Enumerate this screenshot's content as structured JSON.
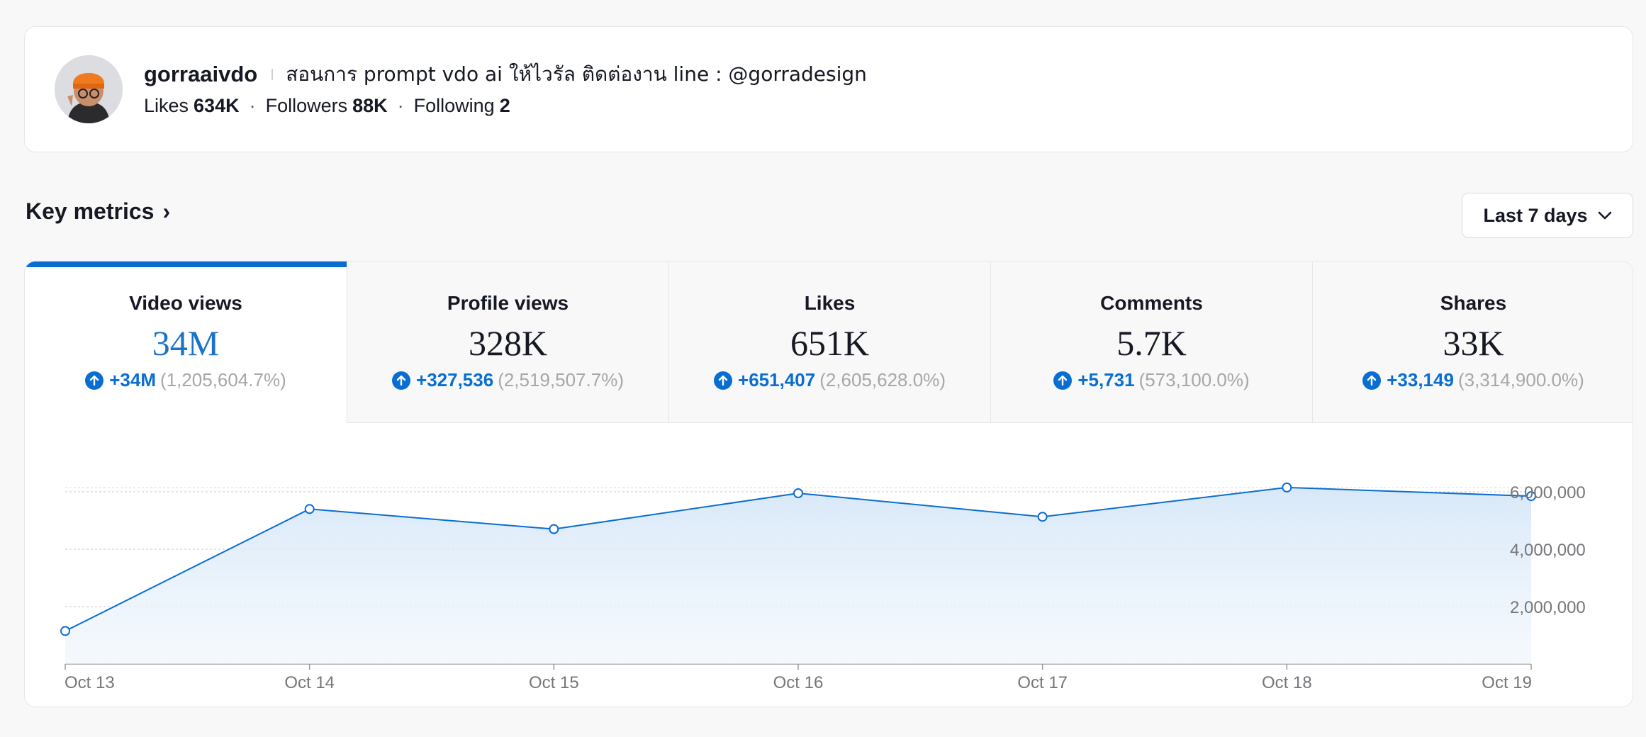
{
  "profile": {
    "username": "gorraaivdo",
    "bio": "สอนการ prompt vdo ai ให้ไวรัล ติดต่องาน line : @gorradesign",
    "stats": [
      {
        "label": "Likes",
        "value": "634K"
      },
      {
        "label": "Followers",
        "value": "88K"
      },
      {
        "label": "Following",
        "value": "2"
      }
    ],
    "avatar_icon": "user-avatar-icon"
  },
  "section": {
    "title": "Key metrics",
    "range_label": "Last 7 days"
  },
  "metrics": [
    {
      "label": "Video views",
      "value": "34M",
      "delta": "+34M",
      "percent": "(1,205,604.7%)",
      "active": true
    },
    {
      "label": "Profile views",
      "value": "328K",
      "delta": "+327,536",
      "percent": "(2,519,507.7%)",
      "active": false
    },
    {
      "label": "Likes",
      "value": "651K",
      "delta": "+651,407",
      "percent": "(2,605,628.0%)",
      "active": false
    },
    {
      "label": "Comments",
      "value": "5.7K",
      "delta": "+5,731",
      "percent": "(573,100.0%)",
      "active": false
    },
    {
      "label": "Shares",
      "value": "33K",
      "delta": "+33,149",
      "percent": "(3,314,900.0%)",
      "active": false
    }
  ],
  "colors": {
    "accent": "#0a6ed1",
    "accent_value": "#1a73c9",
    "muted": "#a6a7ab"
  },
  "chart_data": {
    "type": "area",
    "x": [
      "Oct 13",
      "Oct 14",
      "Oct 15",
      "Oct 16",
      "Oct 17",
      "Oct 18",
      "Oct 19"
    ],
    "series": [
      {
        "values": [
          1150000,
          5400000,
          4700000,
          5950000,
          5130000,
          6150000,
          5850000
        ]
      }
    ],
    "y_ticks": [
      "2,000,000",
      "4,000,000",
      "6,000,000"
    ],
    "y_tick_values": [
      2000000,
      4000000,
      6000000
    ],
    "ylim": [
      0,
      6700000
    ],
    "grid": true
  }
}
